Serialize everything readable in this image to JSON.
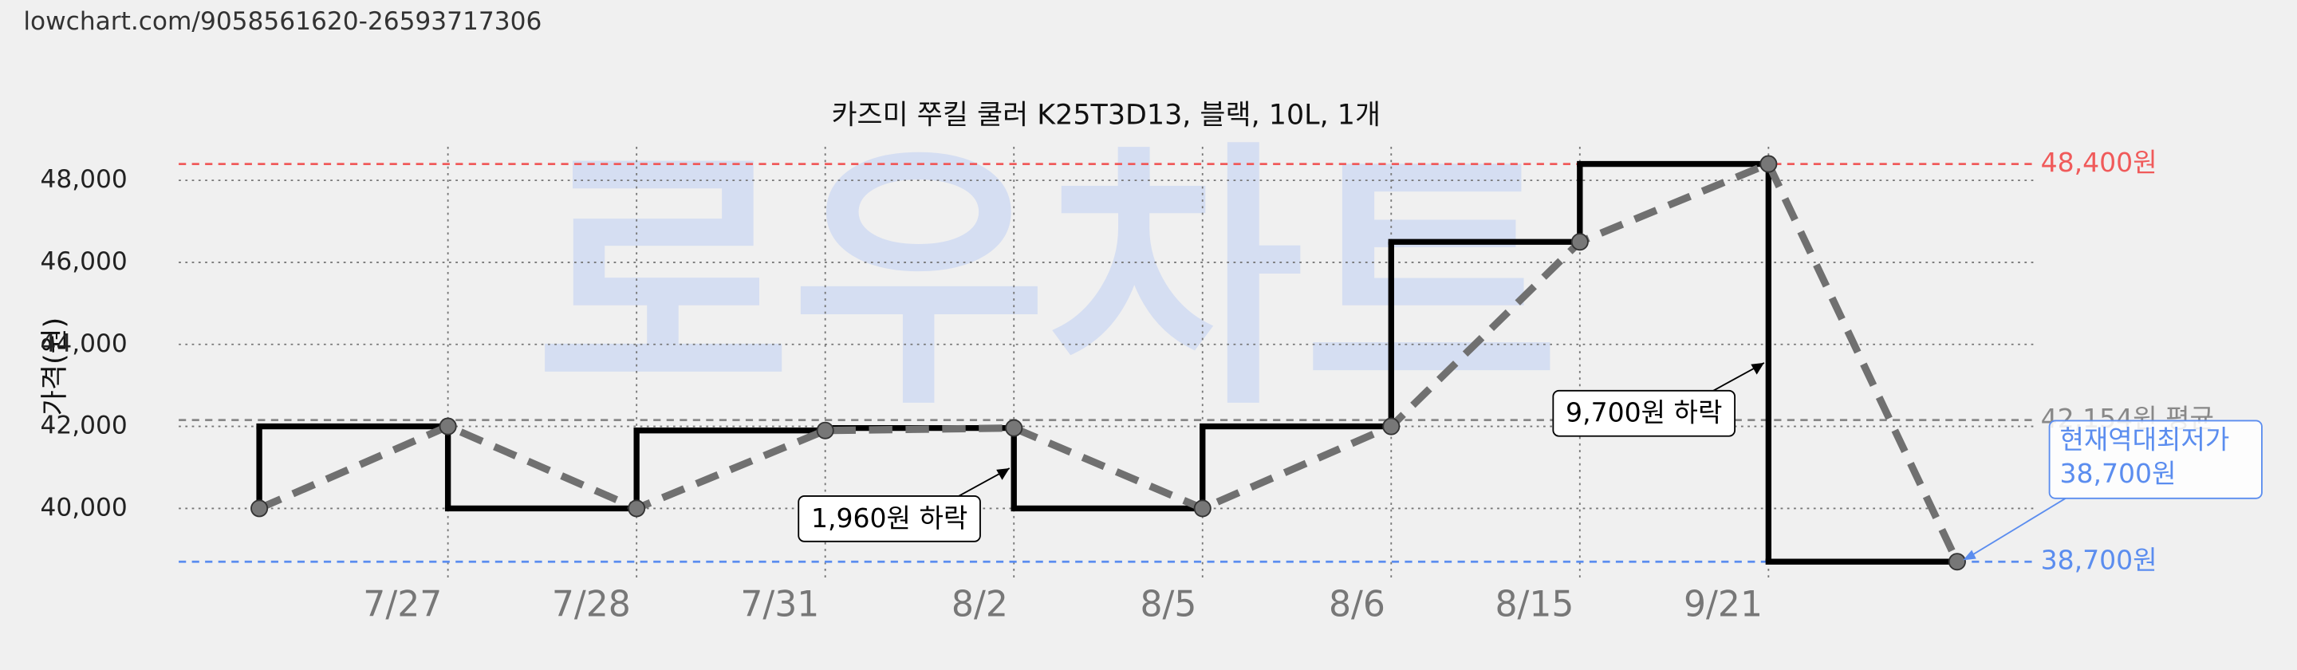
{
  "url": "lowchart.com/9058561620-26593717306",
  "chart_data": {
    "type": "line",
    "title": "카즈미 쭈킬 쿨러 K25T3D13, 블랙, 10L, 1개",
    "y_label": "가격(원)",
    "watermark": "로우차트",
    "categories": [
      null,
      "7/27",
      "7/28",
      "7/31",
      "8/2",
      "8/5",
      "8/6",
      "8/15",
      "9/21",
      null
    ],
    "values": [
      40000,
      42000,
      40000,
      41900,
      41960,
      40000,
      42000,
      46500,
      48400,
      38700
    ],
    "color": "#000000",
    "trend_color": "#707070",
    "ylim": [
      38280,
      48820
    ],
    "yticks": [
      {
        "value": 40000,
        "label": "40,000"
      },
      {
        "value": 42000,
        "label": "42,000"
      },
      {
        "value": 44000,
        "label": "44,000"
      },
      {
        "value": 46000,
        "label": "46,000"
      },
      {
        "value": 48000,
        "label": "48,000"
      }
    ],
    "grid": true,
    "hlines": [
      {
        "value": 48400,
        "label": "48,400원",
        "color": "#f05a5a"
      },
      {
        "value": 42154,
        "label": "42,154원 평균",
        "color": "#888888"
      },
      {
        "value": 38700,
        "label": "38,700원",
        "color": "#5b8def"
      }
    ],
    "annotations": [
      {
        "text": "1,960원 하락",
        "index": 5
      },
      {
        "text": "9,700원 하락",
        "index": 9
      }
    ],
    "callout": {
      "title": "현재역대최저가",
      "value": 38700,
      "value_label": "38,700원",
      "index": 9,
      "color": "#5b8def"
    }
  }
}
